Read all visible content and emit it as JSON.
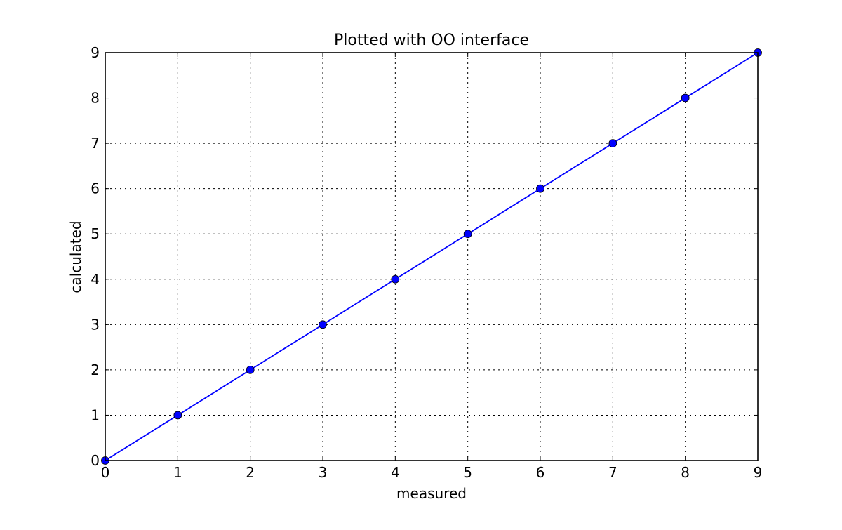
{
  "chart_data": {
    "type": "line",
    "title": "Plotted with OO interface",
    "xlabel": "measured",
    "ylabel": "calculated",
    "xlim": [
      0,
      9
    ],
    "ylim": [
      0,
      9
    ],
    "xticks": [
      0,
      1,
      2,
      3,
      4,
      5,
      6,
      7,
      8,
      9
    ],
    "yticks": [
      0,
      1,
      2,
      3,
      4,
      5,
      6,
      7,
      8,
      9
    ],
    "grid": true,
    "series": [
      {
        "x": [
          0,
          1,
          2,
          3,
          4,
          5,
          6,
          7,
          8,
          9
        ],
        "y": [
          0,
          1,
          2,
          3,
          4,
          5,
          6,
          7,
          8,
          9
        ],
        "color": "#0000ff",
        "marker": "circle",
        "line": "solid"
      }
    ]
  }
}
